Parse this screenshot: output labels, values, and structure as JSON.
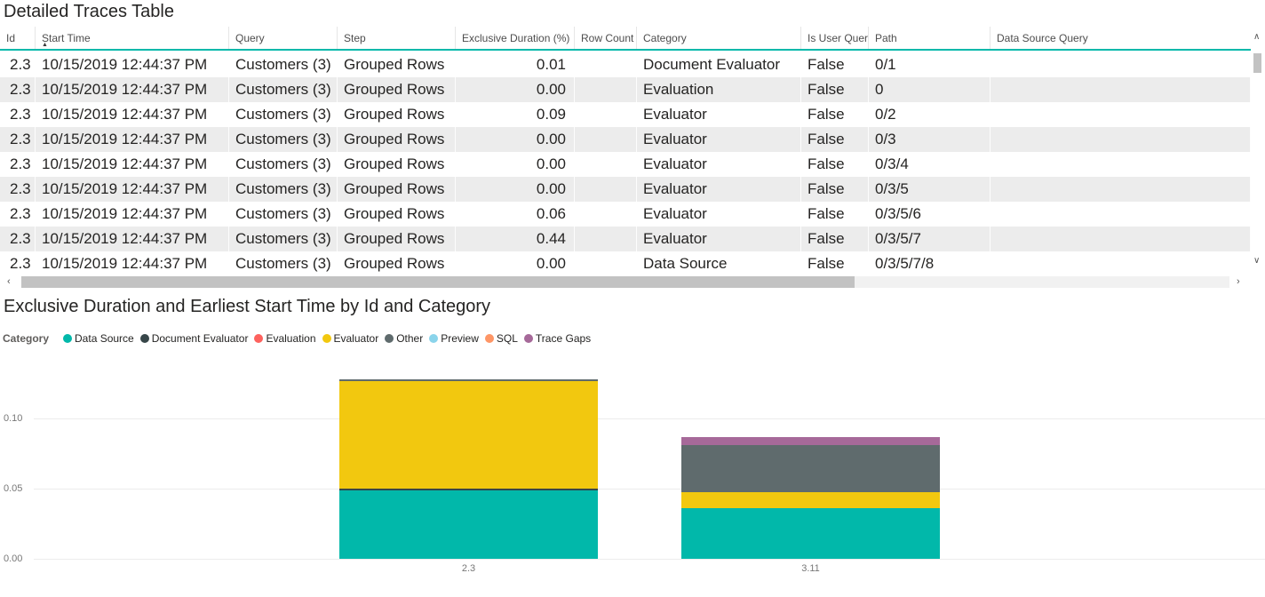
{
  "icons": {
    "scroll_left": "‹",
    "scroll_right": "›",
    "scroll_up": "∧",
    "scroll_down": "∨",
    "sort_ascending": "▲"
  },
  "table": {
    "title": "Detailed Traces Table",
    "sorted_column": "Start Time",
    "sort_direction": "ascending",
    "columns": [
      "Id",
      "Start Time",
      "Query",
      "Step",
      "Exclusive Duration (%)",
      "Row Count",
      "Category",
      "Is User Query",
      "Path",
      "Data Source Query"
    ],
    "rows": [
      [
        "2.3",
        "10/15/2019 12:44:37 PM",
        "Customers (3)",
        "Grouped Rows",
        "0.01",
        "",
        "Document Evaluator",
        "False",
        "0/1",
        ""
      ],
      [
        "2.3",
        "10/15/2019 12:44:37 PM",
        "Customers (3)",
        "Grouped Rows",
        "0.00",
        "",
        "Evaluation",
        "False",
        "0",
        ""
      ],
      [
        "2.3",
        "10/15/2019 12:44:37 PM",
        "Customers (3)",
        "Grouped Rows",
        "0.09",
        "",
        "Evaluator",
        "False",
        "0/2",
        ""
      ],
      [
        "2.3",
        "10/15/2019 12:44:37 PM",
        "Customers (3)",
        "Grouped Rows",
        "0.00",
        "",
        "Evaluator",
        "False",
        "0/3",
        ""
      ],
      [
        "2.3",
        "10/15/2019 12:44:37 PM",
        "Customers (3)",
        "Grouped Rows",
        "0.00",
        "",
        "Evaluator",
        "False",
        "0/3/4",
        ""
      ],
      [
        "2.3",
        "10/15/2019 12:44:37 PM",
        "Customers (3)",
        "Grouped Rows",
        "0.00",
        "",
        "Evaluator",
        "False",
        "0/3/5",
        ""
      ],
      [
        "2.3",
        "10/15/2019 12:44:37 PM",
        "Customers (3)",
        "Grouped Rows",
        "0.06",
        "",
        "Evaluator",
        "False",
        "0/3/5/6",
        ""
      ],
      [
        "2.3",
        "10/15/2019 12:44:37 PM",
        "Customers (3)",
        "Grouped Rows",
        "0.44",
        "",
        "Evaluator",
        "False",
        "0/3/5/7",
        ""
      ],
      [
        "2.3",
        "10/15/2019 12:44:37 PM",
        "Customers (3)",
        "Grouped Rows",
        "0.00",
        "",
        "Data Source",
        "False",
        "0/3/5/7/8",
        ""
      ]
    ],
    "accent_color": "#01B8AA",
    "alt_row_color": "#ECECEC"
  },
  "chart": {
    "title": "Exclusive Duration and Earliest Start Time by Id and Category",
    "legend": {
      "label": "Category",
      "items": [
        {
          "name": "Data Source",
          "color": "#01B8AA"
        },
        {
          "name": "Document Evaluator",
          "color": "#374649"
        },
        {
          "name": "Evaluation",
          "color": "#FD625E"
        },
        {
          "name": "Evaluator",
          "color": "#F2C80F"
        },
        {
          "name": "Other",
          "color": "#5F6B6D"
        },
        {
          "name": "Preview",
          "color": "#8AD4EB"
        },
        {
          "name": "SQL",
          "color": "#FE9666"
        },
        {
          "name": "Trace Gaps",
          "color": "#A66999"
        }
      ]
    }
  },
  "chart_data": {
    "type": "bar",
    "stacked": true,
    "title": "Exclusive Duration and Earliest Start Time by Id and Category",
    "xlabel": "",
    "ylabel": "",
    "categories": [
      "2.3",
      "3.11"
    ],
    "series": [
      {
        "name": "Data Source",
        "values": [
          0.049,
          0.036
        ]
      },
      {
        "name": "Document Evaluator",
        "values": [
          0.0013,
          0
        ]
      },
      {
        "name": "Evaluation",
        "values": [
          0,
          0
        ]
      },
      {
        "name": "Evaluator",
        "values": [
          0.0765,
          0.0115
        ]
      },
      {
        "name": "Other",
        "values": [
          0.0013,
          0.0335
        ]
      },
      {
        "name": "Preview",
        "values": [
          0,
          0
        ]
      },
      {
        "name": "SQL",
        "values": [
          0,
          0
        ]
      },
      {
        "name": "Trace Gaps",
        "values": [
          0,
          0.0057
        ]
      }
    ],
    "bar_totals": [
      0.129,
      0.087
    ],
    "ylim": [
      0,
      0.13
    ],
    "yticks": [
      {
        "value": 0,
        "label": "0.00"
      },
      {
        "value": 0.05,
        "label": "0.05"
      },
      {
        "value": 0.1,
        "label": "0.10"
      }
    ],
    "grid": true,
    "legend_position": "top"
  }
}
